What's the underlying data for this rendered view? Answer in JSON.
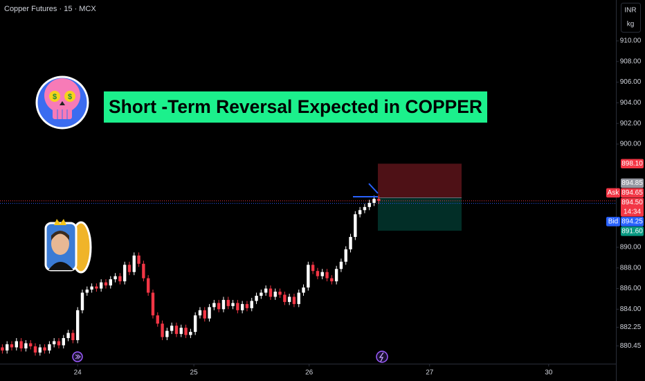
{
  "chart_data": {
    "type": "candlestick",
    "title": "Copper Futures · 15 · MCX",
    "annotation": "Short -Term Reversal Expected in COPPER",
    "currency": "INR",
    "unit": "kg",
    "up_color": "#ffffff",
    "down_color": "#f23645",
    "grid": false,
    "open": [
      880.3,
      880.0,
      880.6,
      880.3,
      880.9,
      880.2,
      880.7,
      880.4,
      879.8,
      880.3,
      880.0,
      880.6,
      880.9,
      880.5,
      881.2,
      881.7,
      881.0,
      883.9,
      885.6,
      885.9,
      886.2,
      886.0,
      886.6,
      886.3,
      886.9,
      887.2,
      886.7,
      888.3,
      887.6,
      889.2,
      888.4,
      887.0,
      885.6,
      883.4,
      882.6,
      881.3,
      881.9,
      882.4,
      881.6,
      882.2,
      881.5,
      881.8,
      883.4,
      883.9,
      883.1,
      884.2,
      884.6,
      884.0,
      884.9,
      884.3,
      884.6,
      883.9,
      884.5,
      884.1,
      884.8,
      885.3,
      885.6,
      886.0,
      885.2,
      885.7,
      885.4,
      884.7,
      885.2,
      884.5,
      885.6,
      886.1,
      888.3,
      887.7,
      887.2,
      887.6,
      887.0,
      886.7,
      887.9,
      888.6,
      889.8,
      891.0,
      893.2,
      893.6,
      893.9,
      894.3,
      894.7
    ],
    "high": [
      880.6,
      880.9,
      880.9,
      881.2,
      881.2,
      881.0,
      881.0,
      880.7,
      880.6,
      880.6,
      880.9,
      881.2,
      881.2,
      881.5,
      882.0,
      882.0,
      884.2,
      885.9,
      886.2,
      886.5,
      886.5,
      886.9,
      886.9,
      887.2,
      887.5,
      887.5,
      888.6,
      888.6,
      889.5,
      889.5,
      888.7,
      887.3,
      885.9,
      883.7,
      882.9,
      882.2,
      882.7,
      882.7,
      882.5,
      882.5,
      882.1,
      883.7,
      884.2,
      884.2,
      884.5,
      884.9,
      884.9,
      885.2,
      885.2,
      884.9,
      884.9,
      884.8,
      884.8,
      885.1,
      885.6,
      885.9,
      886.3,
      886.3,
      886.0,
      886.0,
      885.7,
      885.5,
      885.5,
      885.9,
      886.4,
      888.6,
      888.6,
      888.0,
      887.9,
      887.9,
      887.3,
      888.2,
      888.9,
      890.1,
      891.3,
      893.5,
      893.9,
      894.2,
      894.6,
      895.0,
      895.0
    ],
    "low": [
      879.7,
      879.7,
      880.0,
      880.0,
      879.9,
      879.9,
      880.1,
      879.5,
      879.5,
      879.7,
      879.7,
      880.3,
      880.2,
      880.2,
      880.9,
      880.7,
      880.7,
      883.6,
      885.3,
      885.6,
      885.7,
      885.7,
      886.0,
      886.0,
      886.6,
      886.4,
      886.4,
      887.3,
      887.3,
      888.1,
      886.7,
      885.3,
      883.1,
      882.3,
      881.0,
      881.0,
      881.6,
      881.3,
      881.3,
      881.2,
      881.2,
      881.5,
      883.1,
      882.8,
      882.8,
      883.9,
      883.7,
      883.7,
      884.0,
      884.0,
      883.6,
      883.6,
      883.8,
      883.8,
      884.5,
      885.0,
      885.3,
      884.9,
      884.9,
      885.1,
      884.4,
      884.4,
      884.2,
      884.2,
      885.3,
      885.8,
      887.4,
      886.9,
      886.9,
      886.7,
      886.4,
      886.4,
      887.6,
      888.3,
      889.5,
      890.7,
      892.9,
      893.3,
      893.6,
      894.0,
      894.2
    ],
    "close": [
      880.0,
      880.6,
      880.3,
      880.9,
      880.2,
      880.7,
      880.4,
      879.8,
      880.3,
      880.0,
      880.6,
      880.9,
      880.5,
      881.2,
      881.7,
      881.0,
      883.9,
      885.6,
      885.9,
      886.2,
      886.0,
      886.6,
      886.3,
      886.9,
      887.2,
      886.7,
      888.3,
      887.6,
      889.2,
      888.4,
      887.0,
      885.6,
      883.4,
      882.6,
      881.3,
      881.9,
      882.4,
      881.6,
      882.2,
      881.5,
      881.8,
      883.4,
      883.9,
      883.1,
      884.2,
      884.6,
      884.0,
      884.9,
      884.3,
      884.6,
      883.9,
      884.5,
      884.1,
      884.8,
      885.3,
      885.6,
      886.0,
      885.2,
      885.7,
      885.4,
      884.7,
      885.2,
      884.5,
      885.6,
      886.1,
      888.3,
      887.7,
      887.2,
      887.6,
      887.0,
      886.7,
      887.9,
      888.6,
      889.8,
      891.0,
      893.2,
      893.6,
      893.9,
      894.3,
      894.7,
      894.5
    ],
    "ylim": [
      878.72,
      913.96
    ],
    "yticks": [
      {
        "value": 910,
        "label": "910.00"
      },
      {
        "value": 908,
        "label": "908.00"
      },
      {
        "value": 906,
        "label": "906.00"
      },
      {
        "value": 904,
        "label": "904.00"
      },
      {
        "value": 902,
        "label": "902.00"
      },
      {
        "value": 900,
        "label": "900.00"
      },
      {
        "value": 890,
        "label": "890.00"
      },
      {
        "value": 888,
        "label": "888.00"
      },
      {
        "value": 886,
        "label": "886.00"
      },
      {
        "value": 884,
        "label": "884.00"
      },
      {
        "value": 882.25,
        "label": "882.25"
      },
      {
        "value": 880.45,
        "label": "880.45"
      }
    ],
    "xlim": [
      -0.5,
      130.4
    ],
    "xticks": [
      {
        "value": 16,
        "label": "24"
      },
      {
        "value": 40.7,
        "label": "25"
      },
      {
        "value": 65.2,
        "label": "26"
      },
      {
        "value": 90.8,
        "label": "27"
      },
      {
        "value": 116.1,
        "label": "30"
      }
    ],
    "position": {
      "entry": 894.8,
      "stop": 898.1,
      "target": 891.6,
      "start": 79.8,
      "end": 97.6
    },
    "price_lines": [
      {
        "value": 894.5,
        "color": "#f23645"
      },
      {
        "value": 894.25,
        "color": "#2962ff"
      }
    ],
    "price_tags": [
      {
        "value": 898.1,
        "label": "898.10",
        "color": "#f23645"
      },
      {
        "value": 894.85,
        "label": "894.85",
        "color": "#9598a1"
      },
      {
        "value": 894.65,
        "label": "894.65",
        "tag": "Ask",
        "color": "#f23645"
      },
      {
        "value": 894.5,
        "label": "894.50",
        "countdown": "14:34",
        "color": "#f23645"
      },
      {
        "value": 894.25,
        "label": "894.25",
        "tag": "Bid",
        "color": "#2962ff"
      },
      {
        "value": 891.6,
        "label": "891.60",
        "color": "#089981"
      }
    ]
  }
}
